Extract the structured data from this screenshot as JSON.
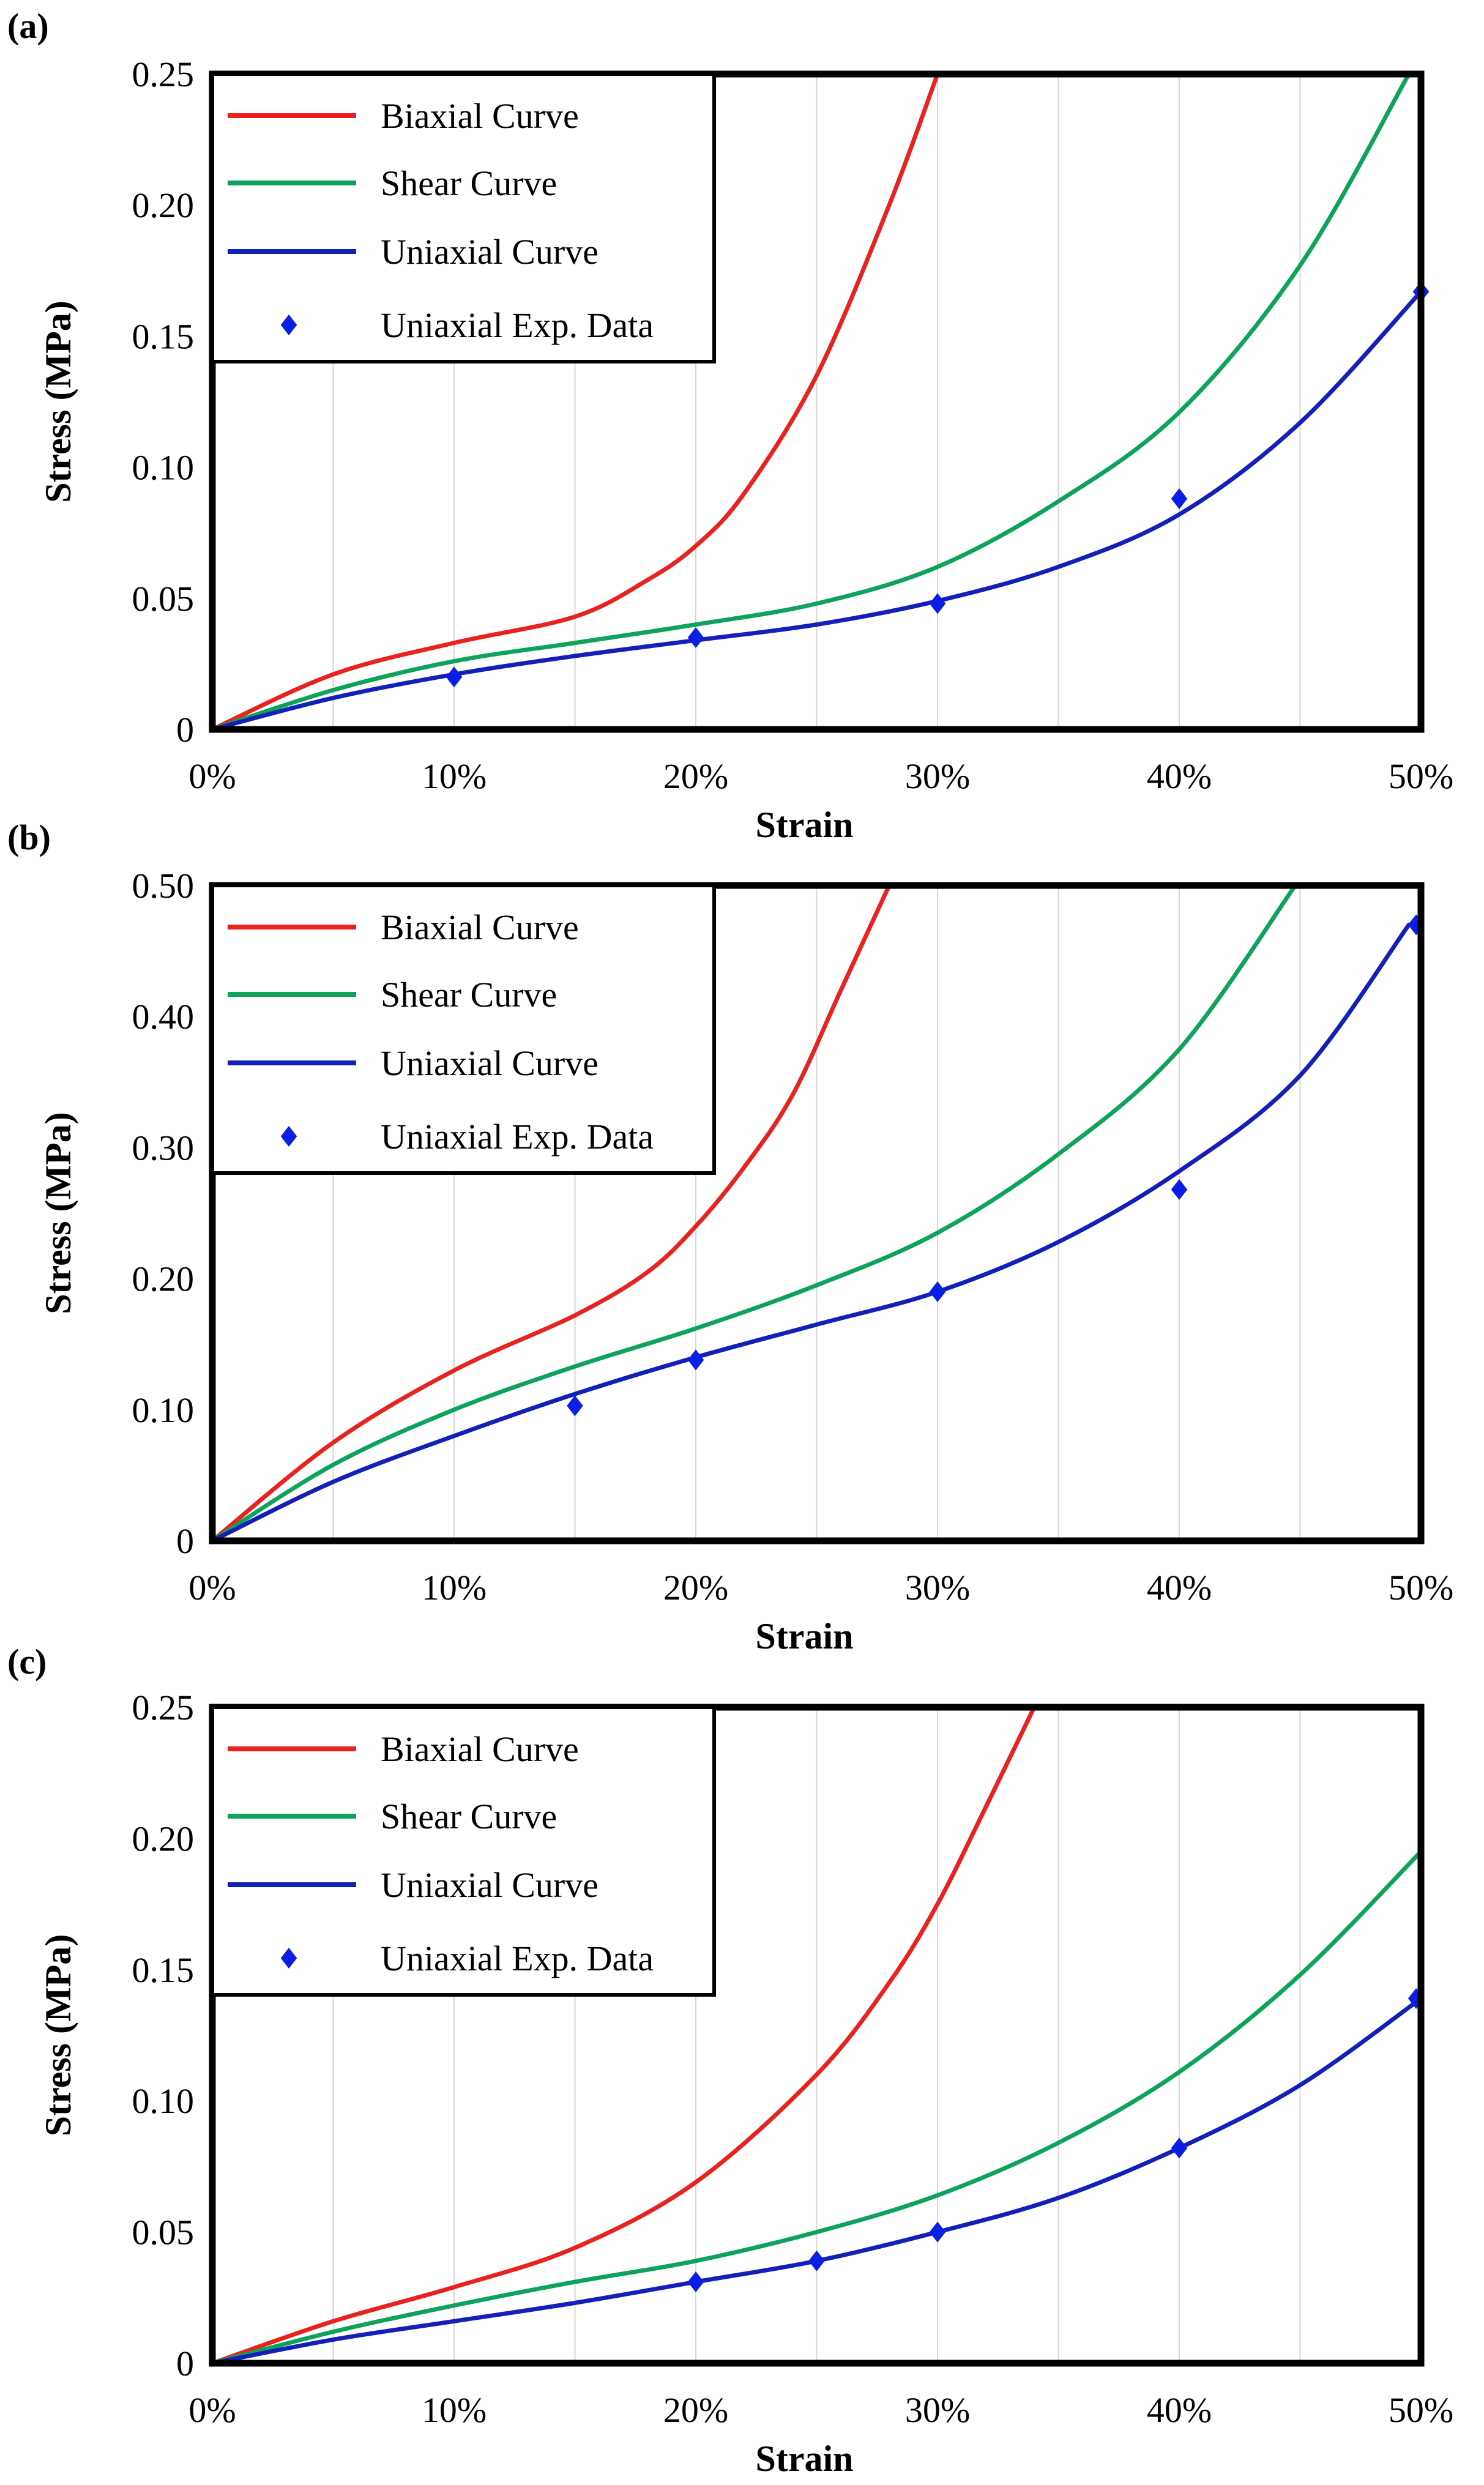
{
  "figure": {
    "background": "#ffffff"
  },
  "chart_data": [
    {
      "panel": "(a)",
      "type": "line",
      "xlabel": "Strain",
      "ylabel": "Stress (MPa)",
      "xlim": [
        0,
        50
      ],
      "ylim": [
        0,
        0.25
      ],
      "xticks": [
        0,
        10,
        20,
        30,
        40,
        50
      ],
      "xtick_labels": [
        "0%",
        "10%",
        "20%",
        "30%",
        "40%",
        "50%"
      ],
      "yticks": [
        0,
        0.05,
        0.1,
        0.15,
        0.2,
        0.25
      ],
      "ytick_labels": [
        "0",
        "0.05",
        "0.10",
        "0.15",
        "0.20",
        "0.25"
      ],
      "grid": "vertical",
      "legend_position": "top-left",
      "series": [
        {
          "name": "Biaxial Curve",
          "kind": "line",
          "color": "#e8221e",
          "x": [
            0,
            5,
            10,
            15,
            18,
            20,
            22,
            25,
            28,
            30
          ],
          "y": [
            0,
            0.021,
            0.033,
            0.043,
            0.057,
            0.07,
            0.09,
            0.135,
            0.2,
            0.25
          ]
        },
        {
          "name": "Shear Curve",
          "kind": "line",
          "color": "#0ea35a",
          "x": [
            0,
            5,
            10,
            15,
            20,
            25,
            30,
            35,
            40,
            45,
            49.5
          ],
          "y": [
            0,
            0.015,
            0.026,
            0.033,
            0.04,
            0.048,
            0.062,
            0.087,
            0.121,
            0.177,
            0.25
          ]
        },
        {
          "name": "Uniaxial Curve",
          "kind": "line",
          "color": "#1320b8",
          "x": [
            0,
            5,
            10,
            15,
            20,
            25,
            30,
            35,
            40,
            45,
            50
          ],
          "y": [
            0,
            0.012,
            0.021,
            0.028,
            0.034,
            0.04,
            0.049,
            0.062,
            0.082,
            0.117,
            0.167
          ]
        },
        {
          "name": "Uniaxial Exp. Data",
          "kind": "scatter",
          "color": "#0a1ee6",
          "x": [
            10,
            20,
            30,
            40,
            50
          ],
          "y": [
            0.02,
            0.035,
            0.048,
            0.088,
            0.167
          ]
        }
      ]
    },
    {
      "panel": "(b)",
      "type": "line",
      "xlabel": "Strain",
      "ylabel": "Stress (MPa)",
      "xlim": [
        0,
        50
      ],
      "ylim": [
        0,
        0.5
      ],
      "xticks": [
        0,
        10,
        20,
        30,
        40,
        50
      ],
      "xtick_labels": [
        "0%",
        "10%",
        "20%",
        "30%",
        "40%",
        "50%"
      ],
      "yticks": [
        0,
        0.1,
        0.2,
        0.3,
        0.4,
        0.5
      ],
      "ytick_labels": [
        "0",
        "0.10",
        "0.20",
        "0.30",
        "0.40",
        "0.50"
      ],
      "grid": "vertical",
      "legend_position": "top-left",
      "series": [
        {
          "name": "Biaxial Curve",
          "kind": "line",
          "color": "#e8221e",
          "x": [
            0,
            5,
            10,
            15,
            18,
            20,
            22,
            24,
            26,
            28
          ],
          "y": [
            0,
            0.075,
            0.13,
            0.172,
            0.205,
            0.24,
            0.285,
            0.34,
            0.42,
            0.5
          ]
        },
        {
          "name": "Shear Curve",
          "kind": "line",
          "color": "#0ea35a",
          "x": [
            0,
            5,
            10,
            15,
            20,
            25,
            30,
            35,
            40,
            44.8
          ],
          "y": [
            0,
            0.058,
            0.1,
            0.133,
            0.162,
            0.195,
            0.235,
            0.295,
            0.375,
            0.5
          ]
        },
        {
          "name": "Uniaxial Curve",
          "kind": "line",
          "color": "#1320b8",
          "x": [
            0,
            5,
            10,
            15,
            20,
            25,
            30,
            35,
            40,
            45,
            49.5
          ],
          "y": [
            0,
            0.045,
            0.08,
            0.112,
            0.14,
            0.165,
            0.19,
            0.228,
            0.282,
            0.355,
            0.47
          ]
        },
        {
          "name": "Uniaxial Exp. Data",
          "kind": "scatter",
          "color": "#0a1ee6",
          "x": [
            15,
            20,
            30,
            40,
            49.8
          ],
          "y": [
            0.103,
            0.138,
            0.19,
            0.268,
            0.47
          ]
        }
      ]
    },
    {
      "panel": "(c)",
      "type": "line",
      "xlabel": "Strain",
      "ylabel": "Stress (MPa)",
      "xlim": [
        0,
        50
      ],
      "ylim": [
        0,
        0.25
      ],
      "xticks": [
        0,
        10,
        20,
        30,
        40,
        50
      ],
      "xtick_labels": [
        "0%",
        "10%",
        "20%",
        "30%",
        "40%",
        "50%"
      ],
      "yticks": [
        0,
        0.05,
        0.1,
        0.15,
        0.2,
        0.25
      ],
      "ytick_labels": [
        "0",
        "0.05",
        "0.10",
        "0.15",
        "0.20",
        "0.25"
      ],
      "grid": "vertical",
      "legend_position": "top-left",
      "series": [
        {
          "name": "Biaxial Curve",
          "kind": "line",
          "color": "#e8221e",
          "x": [
            0,
            5,
            10,
            15,
            20,
            25,
            28,
            30,
            32,
            34
          ],
          "y": [
            0,
            0.016,
            0.029,
            0.044,
            0.069,
            0.11,
            0.145,
            0.175,
            0.212,
            0.25
          ]
        },
        {
          "name": "Shear Curve",
          "kind": "line",
          "color": "#0ea35a",
          "x": [
            0,
            5,
            10,
            15,
            20,
            25,
            30,
            35,
            40,
            45,
            50
          ],
          "y": [
            0,
            0.012,
            0.022,
            0.031,
            0.039,
            0.05,
            0.064,
            0.084,
            0.111,
            0.148,
            0.195
          ]
        },
        {
          "name": "Uniaxial Curve",
          "kind": "line",
          "color": "#1320b8",
          "x": [
            0,
            5,
            10,
            15,
            20,
            25,
            30,
            35,
            40,
            45,
            50
          ],
          "y": [
            0,
            0.009,
            0.016,
            0.023,
            0.031,
            0.039,
            0.05,
            0.063,
            0.082,
            0.106,
            0.139
          ]
        },
        {
          "name": "Uniaxial Exp. Data",
          "kind": "scatter",
          "color": "#0a1ee6",
          "x": [
            20,
            25,
            30,
            40,
            49.8
          ],
          "y": [
            0.031,
            0.039,
            0.05,
            0.082,
            0.139
          ]
        }
      ]
    }
  ]
}
